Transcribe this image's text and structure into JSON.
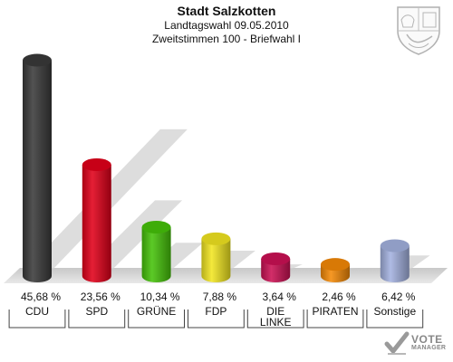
{
  "header": {
    "title": "Stadt Salzkotten",
    "subtitle1": "Landtagswahl 09.05.2010",
    "subtitle2": "Zweitstimmen 100 - Briefwahl I"
  },
  "logo": {
    "word": "VOTE",
    "sub": "MANAGER"
  },
  "chart_data": {
    "type": "bar",
    "title": "Stadt Salzkotten",
    "subtitle": "Landtagswahl 09.05.2010 / Zweitstimmen 100 - Briefwahl I",
    "categories": [
      "CDU",
      "SPD",
      "GRÜNE",
      "FDP",
      "DIE LINKE",
      "PIRATEN",
      "Sonstige"
    ],
    "category_lines": [
      [
        "CDU"
      ],
      [
        "SPD"
      ],
      [
        "GRÜNE"
      ],
      [
        "FDP"
      ],
      [
        "DIE",
        "LINKE"
      ],
      [
        "PIRATEN"
      ],
      [
        "Sonstige"
      ]
    ],
    "values": [
      45.68,
      23.56,
      10.34,
      7.88,
      3.64,
      2.46,
      6.42
    ],
    "value_labels": [
      "45,68 %",
      "23,56 %",
      "10,34 %",
      "7,88 %",
      "3,64 %",
      "2,46 %",
      "6,42 %"
    ],
    "unit": "%",
    "colors": [
      "#3a3a3a",
      "#e2001a",
      "#46c30a",
      "#f2e621",
      "#cc1155",
      "#f58a07",
      "#a4b2e0"
    ],
    "grid": false,
    "legend": "none"
  }
}
